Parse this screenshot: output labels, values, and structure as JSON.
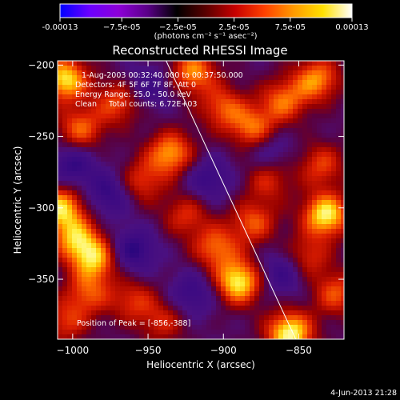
{
  "colorbar": {
    "min": -0.00013,
    "max": 0.00013,
    "tick_labels": [
      "-0.00013",
      "−7.5e-05",
      "−2.5e-05",
      "2.5e-05",
      "7.5e-05",
      "0.00013"
    ],
    "tick_values": [
      -0.00013,
      -7.5e-05,
      -2.5e-05,
      2.5e-05,
      7.5e-05,
      0.00013
    ],
    "unit_label": "(photons cm⁻² s⁻¹ asec⁻²)",
    "colors": [
      "#0000ff",
      "#6a00ff",
      "#8d00d8",
      "#5a0088",
      "#000000",
      "#5a0000",
      "#c80000",
      "#ff4000",
      "#ff9a00",
      "#ffe000",
      "#ffffff"
    ]
  },
  "chart_data": {
    "type": "heatmap",
    "title": "Reconstructed RHESSI Image",
    "xlabel": "Heliocentric X (arcsec)",
    "ylabel": "Heliocentric Y (arcsec)",
    "xlim": [
      -1010,
      -820
    ],
    "ylim": [
      -392,
      -197
    ],
    "xticks": [
      -1000,
      -950,
      -900,
      -850
    ],
    "yticks": [
      -350,
      -300,
      -250,
      -200
    ],
    "xtick_labels": [
      "−1000",
      "−950",
      "−900",
      "−850"
    ],
    "ytick_labels": [
      "−350",
      "−300",
      "−250",
      "−200"
    ],
    "limb_line": {
      "x": [
        -938,
        -852
      ],
      "y": [
        -197,
        -392
      ]
    },
    "annotations": [
      "1-Aug-2003 00:32:40.000 to 00:37:50.000",
      "Detectors: 4F 5F 6F 7F 8F, Att 0",
      "Energy Range: 25.0 - 50.0 keV",
      "Clean     Total counts: 6.72E+03"
    ],
    "peak_label": "Position of Peak = [-856,-388]",
    "peak": [
      -856,
      -388
    ],
    "blobs": [
      {
        "x": -1005,
        "y": -210,
        "v": 0.9
      },
      {
        "x": -995,
        "y": -245,
        "v": 0.6
      },
      {
        "x": -1008,
        "y": -300,
        "v": 0.85
      },
      {
        "x": -998,
        "y": -322,
        "v": 0.7
      },
      {
        "x": -985,
        "y": -336,
        "v": 0.75
      },
      {
        "x": -970,
        "y": -226,
        "v": 0.55
      },
      {
        "x": -955,
        "y": -282,
        "v": 0.5
      },
      {
        "x": -935,
        "y": -262,
        "v": 0.75
      },
      {
        "x": -920,
        "y": -205,
        "v": 0.7
      },
      {
        "x": -900,
        "y": -230,
        "v": 0.55
      },
      {
        "x": -880,
        "y": -245,
        "v": 0.65
      },
      {
        "x": -860,
        "y": -225,
        "v": 0.6
      },
      {
        "x": -838,
        "y": -210,
        "v": 0.7
      },
      {
        "x": -835,
        "y": -270,
        "v": 0.5
      },
      {
        "x": -925,
        "y": -305,
        "v": 0.45
      },
      {
        "x": -880,
        "y": -310,
        "v": 0.55
      },
      {
        "x": -890,
        "y": -352,
        "v": 0.95
      },
      {
        "x": -905,
        "y": -328,
        "v": 0.6
      },
      {
        "x": -832,
        "y": -305,
        "v": 0.95
      },
      {
        "x": -845,
        "y": -335,
        "v": 0.5
      },
      {
        "x": -856,
        "y": -388,
        "v": 1.0
      },
      {
        "x": -960,
        "y": -365,
        "v": 0.45
      },
      {
        "x": -940,
        "y": -380,
        "v": 0.4
      },
      {
        "x": -990,
        "y": -360,
        "v": 0.5
      },
      {
        "x": -825,
        "y": -360,
        "v": 0.55
      },
      {
        "x": -870,
        "y": -280,
        "v": 0.45
      },
      {
        "x": -1005,
        "y": -380,
        "v": 0.45
      },
      {
        "x": -960,
        "y": -330,
        "v": -0.5
      },
      {
        "x": -975,
        "y": -290,
        "v": -0.45
      },
      {
        "x": -910,
        "y": -280,
        "v": -0.4
      },
      {
        "x": -860,
        "y": -345,
        "v": -0.45
      },
      {
        "x": -950,
        "y": -215,
        "v": -0.35
      },
      {
        "x": -1000,
        "y": -270,
        "v": -0.45
      },
      {
        "x": -870,
        "y": -260,
        "v": -0.35
      },
      {
        "x": -920,
        "y": -360,
        "v": -0.4
      }
    ]
  },
  "footer": {
    "timestamp": "4-Jun-2013 21:28"
  }
}
